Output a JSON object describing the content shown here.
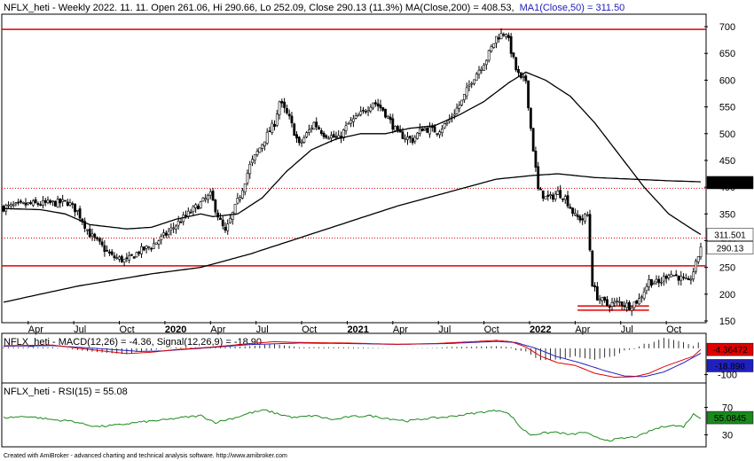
{
  "header": {
    "main": "NFLX_heti - Weekly 2022. 11. 11. Open 261.06, Hi 290.66, Lo 252.09, Close 290.13 (11.3%) MA(Close,200) = 408.53,",
    "ma50": "MA1(Close,50) = 311.50"
  },
  "footer": "Created with AmiBroker - advanced charting and technical analysis software. http://www.amibroker.com",
  "colors": {
    "candle": "#000000",
    "ma": "#000000",
    "support": "#e00000",
    "macd": "#e00000",
    "signal": "#2020c0",
    "hist": "#000000",
    "rsi": "#1a8a1a"
  },
  "chart_data": [
    {
      "type": "candlestick",
      "title": "NFLX_heti - Weekly",
      "date_labels": [
        "Apr",
        "Jul",
        "Oct",
        "2020",
        "Apr",
        "Jul",
        "Oct",
        "2021",
        "Apr",
        "Jul",
        "Oct",
        "2022",
        "Apr",
        "Jul",
        "Oct"
      ],
      "y_ticks": [
        150,
        200,
        250,
        300,
        350,
        400,
        450,
        500,
        550,
        600,
        650,
        700
      ],
      "ylim": [
        150,
        720
      ],
      "ohlc_anchors": [
        [
          0,
          362
        ],
        [
          10,
          368
        ],
        [
          20,
          370
        ],
        [
          26,
          372
        ],
        [
          30,
          355
        ],
        [
          35,
          312
        ],
        [
          44,
          270
        ],
        [
          50,
          262
        ],
        [
          55,
          280
        ],
        [
          60,
          290
        ],
        [
          66,
          312
        ],
        [
          72,
          338
        ],
        [
          80,
          370
        ],
        [
          84,
          385
        ],
        [
          88,
          335
        ],
        [
          90,
          315
        ],
        [
          96,
          385
        ],
        [
          100,
          440
        ],
        [
          106,
          490
        ],
        [
          110,
          520
        ],
        [
          112,
          560
        ],
        [
          116,
          528
        ],
        [
          120,
          478
        ],
        [
          126,
          520
        ],
        [
          130,
          500
        ],
        [
          136,
          490
        ],
        [
          140,
          518
        ],
        [
          146,
          540
        ],
        [
          150,
          560
        ],
        [
          154,
          545
        ],
        [
          160,
          500
        ],
        [
          166,
          488
        ],
        [
          170,
          510
        ],
        [
          176,
          505
        ],
        [
          180,
          520
        ],
        [
          186,
          560
        ],
        [
          190,
          600
        ],
        [
          196,
          640
        ],
        [
          200,
          680
        ],
        [
          204,
          690
        ],
        [
          208,
          620
        ],
        [
          210,
          600
        ],
        [
          212,
          600
        ],
        [
          214,
          510
        ],
        [
          217,
          395
        ],
        [
          220,
          380
        ],
        [
          222,
          380
        ],
        [
          225,
          390
        ],
        [
          228,
          380
        ],
        [
          232,
          345
        ],
        [
          235,
          340
        ],
        [
          237,
          348
        ],
        [
          239,
          220
        ],
        [
          241,
          195
        ],
        [
          245,
          180
        ],
        [
          250,
          185
        ],
        [
          254,
          178
        ],
        [
          258,
          190
        ],
        [
          262,
          225
        ],
        [
          266,
          220
        ],
        [
          270,
          240
        ],
        [
          274,
          232
        ],
        [
          278,
          220
        ],
        [
          281,
          255
        ],
        [
          283,
          290
        ]
      ],
      "ma200_anchors": [
        [
          0,
          185
        ],
        [
          30,
          215
        ],
        [
          60,
          238
        ],
        [
          80,
          250
        ],
        [
          100,
          275
        ],
        [
          120,
          305
        ],
        [
          140,
          335
        ],
        [
          160,
          365
        ],
        [
          180,
          390
        ],
        [
          200,
          415
        ],
        [
          215,
          422
        ],
        [
          225,
          425
        ],
        [
          240,
          418
        ],
        [
          270,
          412
        ],
        [
          283,
          410
        ]
      ],
      "ma50_anchors": [
        [
          0,
          360
        ],
        [
          15,
          358
        ],
        [
          25,
          350
        ],
        [
          35,
          330
        ],
        [
          50,
          322
        ],
        [
          60,
          325
        ],
        [
          70,
          340
        ],
        [
          80,
          350
        ],
        [
          85,
          345
        ],
        [
          95,
          350
        ],
        [
          105,
          380
        ],
        [
          115,
          430
        ],
        [
          125,
          470
        ],
        [
          135,
          490
        ],
        [
          145,
          500
        ],
        [
          155,
          500
        ],
        [
          165,
          510
        ],
        [
          175,
          515
        ],
        [
          185,
          535
        ],
        [
          195,
          560
        ],
        [
          205,
          595
        ],
        [
          212,
          615
        ],
        [
          220,
          600
        ],
        [
          230,
          570
        ],
        [
          240,
          520
        ],
        [
          250,
          460
        ],
        [
          260,
          400
        ],
        [
          270,
          350
        ],
        [
          280,
          320
        ],
        [
          283,
          311.5
        ]
      ],
      "support_solid": [
        695,
        253
      ],
      "support_dotted": [
        398,
        305
      ],
      "floor_lines": [
        178,
        170
      ],
      "last_values": [
        {
          "label": "408.528",
          "value": 408.53,
          "style": "dark"
        },
        {
          "label": "311.501",
          "value": 311.5,
          "style": "light"
        },
        {
          "label": "290.13",
          "value": 290.13,
          "style": "light"
        }
      ]
    },
    {
      "type": "line",
      "title": "NFLX_heti - MACD(12,26) = -4.36, Signal(12,26,9) = -18.90",
      "series": [
        {
          "name": "MACD(12,26)",
          "last": -4.36
        },
        {
          "name": "Signal(12,26,9)",
          "last": -18.9
        }
      ],
      "y_ticks": [
        -100
      ],
      "ylim": [
        -125,
        50
      ],
      "macd_anchors": [
        [
          0,
          10
        ],
        [
          20,
          12
        ],
        [
          35,
          -5
        ],
        [
          50,
          -20
        ],
        [
          60,
          -15
        ],
        [
          70,
          -5
        ],
        [
          85,
          5
        ],
        [
          100,
          18
        ],
        [
          110,
          25
        ],
        [
          120,
          22
        ],
        [
          140,
          20
        ],
        [
          160,
          15
        ],
        [
          175,
          18
        ],
        [
          190,
          25
        ],
        [
          200,
          30
        ],
        [
          206,
          25
        ],
        [
          212,
          5
        ],
        [
          218,
          -30
        ],
        [
          225,
          -55
        ],
        [
          232,
          -65
        ],
        [
          240,
          -95
        ],
        [
          248,
          -110
        ],
        [
          256,
          -108
        ],
        [
          262,
          -95
        ],
        [
          268,
          -70
        ],
        [
          274,
          -50
        ],
        [
          280,
          -30
        ],
        [
          283,
          -4.36
        ]
      ],
      "signal_anchors": [
        [
          0,
          8
        ],
        [
          20,
          10
        ],
        [
          40,
          -2
        ],
        [
          55,
          -12
        ],
        [
          65,
          -10
        ],
        [
          80,
          0
        ],
        [
          100,
          14
        ],
        [
          120,
          20
        ],
        [
          140,
          18
        ],
        [
          160,
          15
        ],
        [
          180,
          18
        ],
        [
          200,
          26
        ],
        [
          208,
          22
        ],
        [
          216,
          0
        ],
        [
          224,
          -30
        ],
        [
          234,
          -55
        ],
        [
          244,
          -85
        ],
        [
          252,
          -105
        ],
        [
          260,
          -108
        ],
        [
          268,
          -90
        ],
        [
          276,
          -55
        ],
        [
          283,
          -18.9
        ]
      ],
      "last_values": [
        {
          "label": "-4.36472",
          "value": -4.36,
          "color": "#e00000"
        },
        {
          "label": "-18.898",
          "value": -18.9,
          "color": "#2020c0"
        }
      ]
    },
    {
      "type": "line",
      "title": "NFLX_heti - RSI(15) = 55.08",
      "series": [
        {
          "name": "RSI(15)",
          "last": 55.08
        }
      ],
      "y_ticks": [
        30,
        70
      ],
      "ylim": [
        15,
        85
      ],
      "rsi_anchors": [
        [
          0,
          55
        ],
        [
          10,
          57
        ],
        [
          20,
          52
        ],
        [
          28,
          50
        ],
        [
          32,
          46
        ],
        [
          38,
          42
        ],
        [
          46,
          44
        ],
        [
          54,
          48
        ],
        [
          60,
          50
        ],
        [
          66,
          52
        ],
        [
          72,
          55
        ],
        [
          80,
          58
        ],
        [
          86,
          48
        ],
        [
          94,
          55
        ],
        [
          100,
          62
        ],
        [
          106,
          66
        ],
        [
          112,
          60
        ],
        [
          118,
          55
        ],
        [
          126,
          58
        ],
        [
          134,
          52
        ],
        [
          140,
          56
        ],
        [
          148,
          58
        ],
        [
          156,
          54
        ],
        [
          164,
          50
        ],
        [
          172,
          54
        ],
        [
          180,
          56
        ],
        [
          188,
          60
        ],
        [
          196,
          64
        ],
        [
          202,
          66
        ],
        [
          206,
          58
        ],
        [
          210,
          40
        ],
        [
          214,
          30
        ],
        [
          218,
          32
        ],
        [
          224,
          34
        ],
        [
          230,
          30
        ],
        [
          236,
          34
        ],
        [
          240,
          26
        ],
        [
          246,
          22
        ],
        [
          252,
          25
        ],
        [
          258,
          28
        ],
        [
          264,
          38
        ],
        [
          270,
          44
        ],
        [
          276,
          42
        ],
        [
          280,
          60
        ],
        [
          283,
          55.08
        ]
      ],
      "last_values": [
        {
          "label": "55.0845",
          "value": 55.08,
          "color": "#1a8a1a"
        }
      ]
    }
  ]
}
